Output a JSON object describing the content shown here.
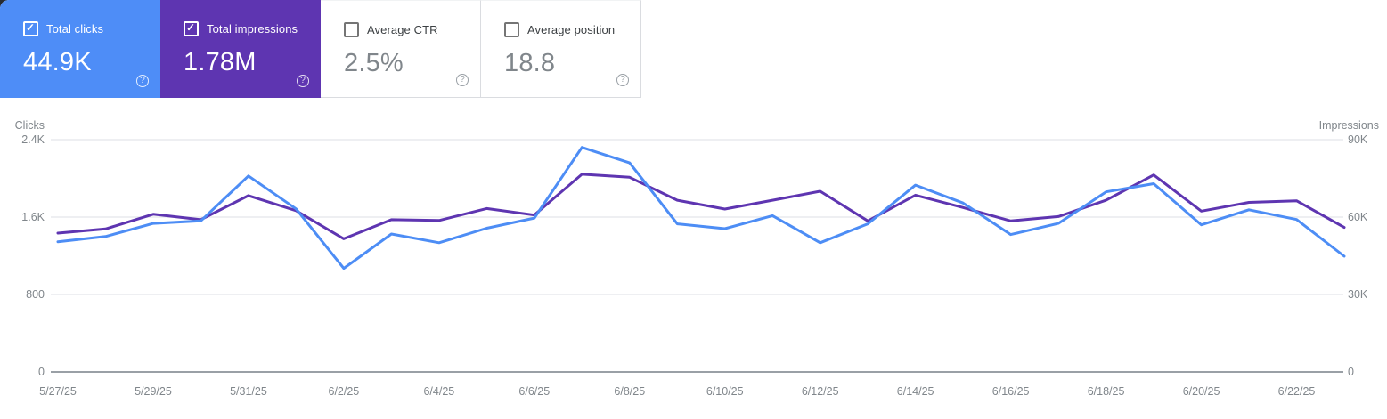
{
  "cards": [
    {
      "label": "Total clicks",
      "value": "44.9K",
      "checked": true,
      "bg": "#4e8df7",
      "fg": "#ffffff"
    },
    {
      "label": "Total impressions",
      "value": "1.78M",
      "checked": true,
      "bg": "#5e35b1",
      "fg": "#ffffff"
    },
    {
      "label": "Average CTR",
      "value": "2.5%",
      "checked": false,
      "bg": "#ffffff",
      "fg": "#80868b",
      "label_color": "#3c4043"
    },
    {
      "label": "Average position",
      "value": "18.8",
      "checked": false,
      "bg": "#ffffff",
      "fg": "#80868b",
      "label_color": "#3c4043"
    }
  ],
  "help_icon_glyph": "?",
  "chart_data": {
    "type": "line",
    "x": [
      "5/27/25",
      "5/28/25",
      "5/29/25",
      "5/30/25",
      "5/31/25",
      "6/1/25",
      "6/2/25",
      "6/3/25",
      "6/4/25",
      "6/5/25",
      "6/6/25",
      "6/7/25",
      "6/8/25",
      "6/9/25",
      "6/10/25",
      "6/11/25",
      "6/12/25",
      "6/13/25",
      "6/14/25",
      "6/15/25",
      "6/16/25",
      "6/17/25",
      "6/18/25",
      "6/19/25",
      "6/20/25",
      "6/21/25",
      "6/22/25",
      "6/23/25"
    ],
    "x_tick_labels": [
      "5/27/25",
      "5/29/25",
      "5/31/25",
      "6/2/25",
      "6/4/25",
      "6/6/25",
      "6/8/25",
      "6/10/25",
      "6/12/25",
      "6/14/25",
      "6/16/25",
      "6/18/25",
      "6/20/25",
      "6/22/25"
    ],
    "series": [
      {
        "name": "Total impressions",
        "axis": "right",
        "color": "#5e35b1",
        "values": [
          53800,
          55400,
          61100,
          59000,
          68300,
          62500,
          51600,
          59000,
          58700,
          63300,
          60800,
          76600,
          75400,
          66500,
          63100,
          66500,
          70000,
          58500,
          68500,
          63700,
          58500,
          60200,
          66500,
          76300,
          62300,
          65700,
          66300,
          56000
        ]
      },
      {
        "name": "Total clicks",
        "axis": "left",
        "color": "#4d8df5",
        "values": [
          1345,
          1400,
          1535,
          1560,
          2025,
          1685,
          1070,
          1425,
          1335,
          1485,
          1590,
          2320,
          2160,
          1530,
          1480,
          1615,
          1335,
          1530,
          1930,
          1745,
          1420,
          1535,
          1860,
          1945,
          1520,
          1675,
          1575,
          1195
        ]
      }
    ],
    "left_axis": {
      "title": "Clicks",
      "max": 2400,
      "ticks": [
        {
          "v": 2400,
          "label": "2.4K"
        },
        {
          "v": 1600,
          "label": "1.6K"
        },
        {
          "v": 800,
          "label": "800"
        },
        {
          "v": 0,
          "label": "0"
        }
      ]
    },
    "right_axis": {
      "title": "Impressions",
      "max": 90000,
      "ticks": [
        {
          "v": 90000,
          "label": "90K"
        },
        {
          "v": 60000,
          "label": "60K"
        },
        {
          "v": 30000,
          "label": "30K"
        },
        {
          "v": 0,
          "label": "0"
        }
      ]
    },
    "grid_on": true,
    "colors": {
      "grid": "#e8eaed",
      "axis_line": "#9aa0a6",
      "labels": "#80868b"
    }
  }
}
